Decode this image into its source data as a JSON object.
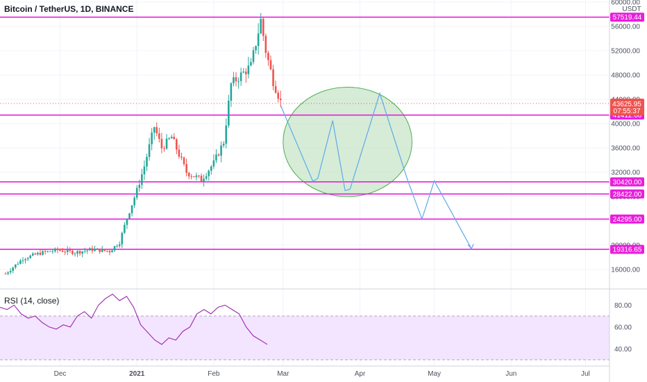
{
  "header": {
    "symbol_title": "Bitcoin / TetherUS, 1D, BINANCE"
  },
  "rsi_panel": {
    "title": "RSI (14, close)"
  },
  "colors": {
    "up": "#26a69a",
    "down": "#ef5350",
    "level_line": "#e91edb",
    "projection": "#5da9e9",
    "ellipse_stroke": "#4caf50",
    "ellipse_fill": "#c8e6c9",
    "rsi_line": "#9c27b0",
    "rsi_band": "#f3e5ff",
    "current_price_bg": "#ef5350"
  },
  "chart_data": {
    "type": "candlestick",
    "symbol": "Bitcoin / TetherUS",
    "interval": "1D",
    "exchange": "BINANCE",
    "currency_unit": "USDT",
    "price_axis_ticks": [
      16000,
      20000,
      24000,
      28000,
      32000,
      36000,
      40000,
      44000,
      48000,
      52000,
      56000,
      60000
    ],
    "price_axis_tick_labels": [
      "16000.00",
      "20000.00",
      "24000.00",
      "28000.00",
      "32000.00",
      "36000.00",
      "40000.00",
      "44000.00",
      "48000.00",
      "52000.00",
      "56000.00",
      "60000.00"
    ],
    "time_axis_labels": [
      "Dec",
      "2021",
      "Feb",
      "Mar",
      "Apr",
      "May",
      "Jun",
      "Jul"
    ],
    "horizontal_levels": [
      57519.44,
      41412.6,
      30420.0,
      28422.0,
      24295.0,
      19316.65
    ],
    "horizontal_level_labels": [
      "57519.44",
      "41412.60",
      "30420.00",
      "28422.00",
      "24295.00",
      "19316.65"
    ],
    "current_price": 43625.95,
    "current_price_label": "43625.95",
    "countdown": "07:55:37",
    "candles_close_path": [
      [
        "2020-11-09",
        15300
      ],
      [
        "2020-11-16",
        17800
      ],
      [
        "2020-11-23",
        18700
      ],
      [
        "2020-11-30",
        19200
      ],
      [
        "2020-12-07",
        18800
      ],
      [
        "2020-12-14",
        19300
      ],
      [
        "2020-12-21",
        19000
      ],
      [
        "2020-12-25",
        20500
      ],
      [
        "2020-12-28",
        24500
      ],
      [
        "2021-01-01",
        29000
      ],
      [
        "2021-01-04",
        33000
      ],
      [
        "2021-01-08",
        39500
      ],
      [
        "2021-01-11",
        36000
      ],
      [
        "2021-01-15",
        37800
      ],
      [
        "2021-01-21",
        32000
      ],
      [
        "2021-01-27",
        30800
      ],
      [
        "2021-02-01",
        33500
      ],
      [
        "2021-02-05",
        37000
      ],
      [
        "2021-02-08",
        46500
      ],
      [
        "2021-02-12",
        48000
      ],
      [
        "2021-02-16",
        49500
      ],
      [
        "2021-02-20",
        57000
      ],
      [
        "2021-02-22",
        52000
      ],
      [
        "2021-02-25",
        47000
      ],
      [
        "2021-02-28",
        43626
      ]
    ],
    "projection_path": [
      [
        "2021-02-28",
        43000
      ],
      [
        "2021-03-13",
        30500
      ],
      [
        "2021-03-15",
        31000
      ],
      [
        "2021-03-21",
        40500
      ],
      [
        "2021-03-26",
        29000
      ],
      [
        "2021-03-28",
        29200
      ],
      [
        "2021-04-09",
        45000
      ],
      [
        "2021-04-20",
        31000
      ],
      [
        "2021-04-26",
        24300
      ],
      [
        "2021-05-01",
        30600
      ],
      [
        "2021-05-16",
        19400
      ]
    ],
    "ellipse_zone": {
      "x_start": "2021-02-29",
      "x_end": "2021-04-22",
      "y_min": 28000,
      "y_max": 46000
    },
    "rsi": {
      "name": "RSI (14, close)",
      "axis_ticks": [
        40,
        60,
        80
      ],
      "axis_tick_labels": [
        "40.00",
        "60.00",
        "80.00"
      ],
      "band": [
        30,
        70
      ],
      "values": [
        78,
        76,
        80,
        72,
        68,
        70,
        64,
        60,
        58,
        62,
        60,
        70,
        74,
        68,
        80,
        86,
        90,
        84,
        88,
        78,
        62,
        55,
        48,
        44,
        50,
        48,
        56,
        60,
        72,
        76,
        72,
        78,
        80,
        76,
        72,
        60,
        52,
        48,
        44
      ]
    }
  }
}
